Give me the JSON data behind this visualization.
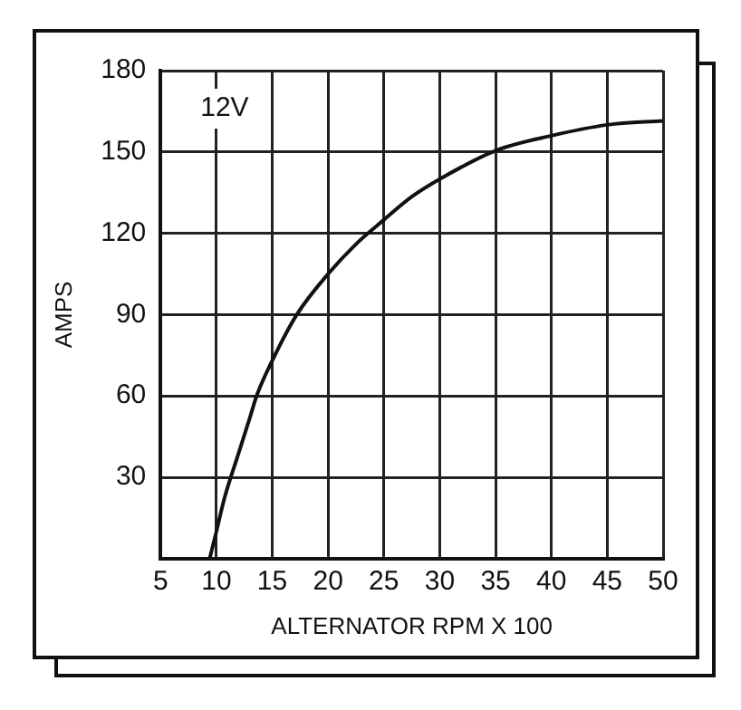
{
  "chart_data": {
    "type": "line",
    "title": "12V",
    "xlabel": "ALTERNATOR RPM X 100",
    "ylabel": "AMPS",
    "x": [
      9.4,
      10,
      10.7,
      11.8,
      13,
      13.6,
      15,
      17.2,
      20,
      22.5,
      25,
      27.5,
      30,
      35,
      40,
      45,
      50
    ],
    "series": [
      {
        "color": "#111111",
        "values": [
          0,
          10,
          22,
          36.5,
          52,
          60,
          73,
          90,
          105,
          116,
          125,
          133.5,
          140,
          150.5,
          156,
          160,
          161.5
        ]
      }
    ],
    "xlim": [
      5,
      50
    ],
    "xticks": [
      5,
      10,
      15,
      20,
      25,
      30,
      35,
      40,
      45,
      50
    ],
    "ylim": [
      0,
      180
    ],
    "yticks": [
      30,
      60,
      90,
      120,
      150,
      180
    ],
    "grid": true,
    "legend": false,
    "marker": "none",
    "line_style": "solid"
  }
}
